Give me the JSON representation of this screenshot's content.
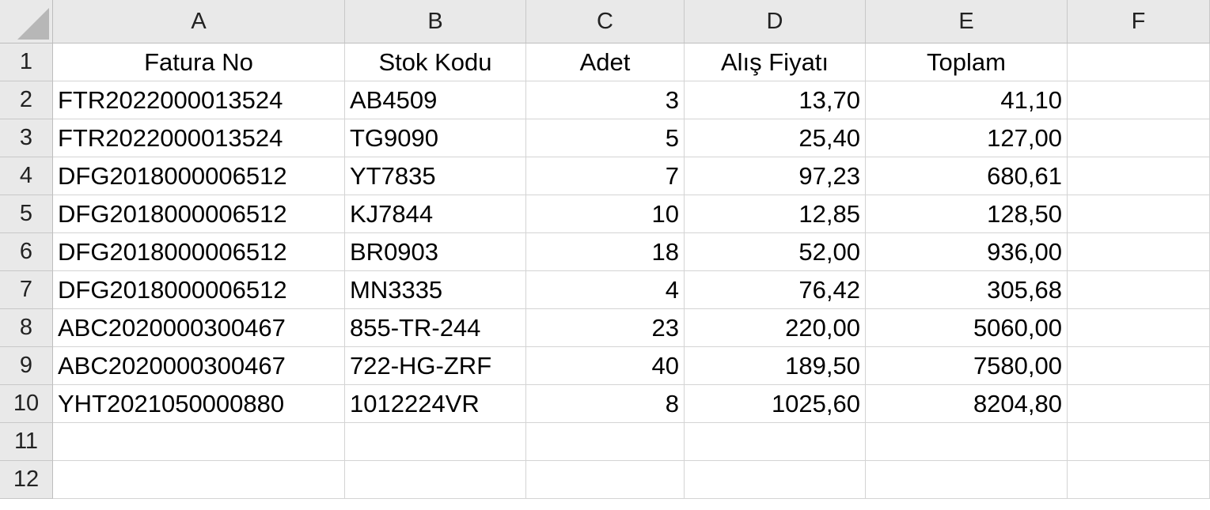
{
  "columns": [
    "A",
    "B",
    "C",
    "D",
    "E",
    "F"
  ],
  "row_numbers": [
    "1",
    "2",
    "3",
    "4",
    "5",
    "6",
    "7",
    "8",
    "9",
    "10",
    "11",
    "12"
  ],
  "headers": {
    "fatura_no": "Fatura No",
    "stok_kodu": "Stok Kodu",
    "adet": "Adet",
    "alis_fiyati": "Alış Fiyatı",
    "toplam": "Toplam"
  },
  "rows": [
    {
      "fatura_no": "FTR2022000013524",
      "stok_kodu": "AB4509",
      "adet": "3",
      "alis_fiyati": "13,70",
      "toplam": "41,10"
    },
    {
      "fatura_no": "FTR2022000013524",
      "stok_kodu": "TG9090",
      "adet": "5",
      "alis_fiyati": "25,40",
      "toplam": "127,00"
    },
    {
      "fatura_no": "DFG2018000006512",
      "stok_kodu": "YT7835",
      "adet": "7",
      "alis_fiyati": "97,23",
      "toplam": "680,61"
    },
    {
      "fatura_no": "DFG2018000006512",
      "stok_kodu": "KJ7844",
      "adet": "10",
      "alis_fiyati": "12,85",
      "toplam": "128,50"
    },
    {
      "fatura_no": "DFG2018000006512",
      "stok_kodu": "BR0903",
      "adet": "18",
      "alis_fiyati": "52,00",
      "toplam": "936,00"
    },
    {
      "fatura_no": "DFG2018000006512",
      "stok_kodu": "MN3335",
      "adet": "4",
      "alis_fiyati": "76,42",
      "toplam": "305,68"
    },
    {
      "fatura_no": "ABC2020000300467",
      "stok_kodu": "855-TR-244",
      "adet": "23",
      "alis_fiyati": "220,00",
      "toplam": "5060,00"
    },
    {
      "fatura_no": "ABC2020000300467",
      "stok_kodu": "722-HG-ZRF",
      "adet": "40",
      "alis_fiyati": "189,50",
      "toplam": "7580,00"
    },
    {
      "fatura_no": "YHT2021050000880",
      "stok_kodu": "1012224VR",
      "adet": "8",
      "alis_fiyati": "1025,60",
      "toplam": "8204,80"
    }
  ],
  "colors": {
    "header_bg": "#e9e9e9",
    "gridline": "#d4d4d4",
    "header_border": "#bdbdbd"
  }
}
